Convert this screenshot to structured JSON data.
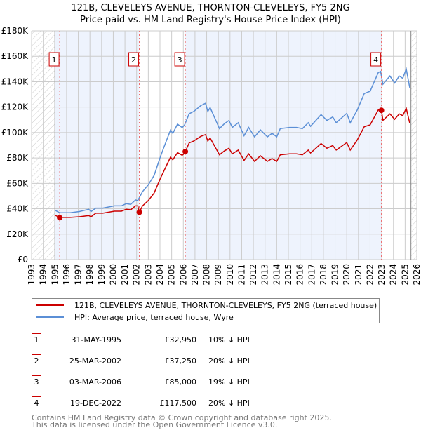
{
  "title": "121B, CLEVELEYS AVENUE, THORNTON-CLEVELEYS, FY5 2NG",
  "subtitle": "Price paid vs. HM Land Registry's House Price Index (HPI)",
  "legend": {
    "price_paid": "121B, CLEVELEYS AVENUE, THORNTON-CLEVELEYS, FY5 2NG (terraced house)",
    "hpi": "HPI: Average price, terraced house, Wyre"
  },
  "sales": [
    {
      "num": "1",
      "date": "31-MAY-1995",
      "price": "£32,950",
      "hpi": "10% ↓ HPI",
      "year": 1995.41,
      "value": 32.95
    },
    {
      "num": "2",
      "date": "25-MAR-2002",
      "price": "£37,250",
      "hpi": "20% ↓ HPI",
      "year": 2002.23,
      "value": 37.25
    },
    {
      "num": "3",
      "date": "03-MAR-2006",
      "price": "£85,000",
      "hpi": "19% ↓ HPI",
      "year": 2006.17,
      "value": 85.0
    },
    {
      "num": "4",
      "date": "19-DEC-2022",
      "price": "£117,500",
      "hpi": "20% ↓ HPI",
      "year": 2022.97,
      "value": 117.5
    }
  ],
  "footer": {
    "line1": "Contains HM Land Registry data © Crown copyright and database right 2025.",
    "line2": "This data is licensed under the Open Government Licence v3.0."
  },
  "colors": {
    "price_paid": "#cc0000",
    "hpi": "#5b8fd6",
    "shade": "#eef3fd",
    "grid": "#cccccc"
  },
  "chart_data": {
    "type": "line",
    "xlim": [
      1993,
      2026
    ],
    "ylim": [
      0,
      180
    ],
    "data_start": 1995,
    "data_end": 2025.5,
    "yticks": [
      0,
      20,
      40,
      60,
      80,
      100,
      120,
      140,
      160,
      180
    ],
    "ytick_labels": [
      "£0",
      "£20K",
      "£40K",
      "£60K",
      "£80K",
      "£100K",
      "£120K",
      "£140K",
      "£160K",
      "£180K"
    ],
    "xticks": [
      "1993",
      "1994",
      "1995",
      "1996",
      "1997",
      "1998",
      "1999",
      "2000",
      "2001",
      "2002",
      "2003",
      "2004",
      "2005",
      "2006",
      "2007",
      "2008",
      "2009",
      "2010",
      "2011",
      "2012",
      "2013",
      "2014",
      "2015",
      "2016",
      "2017",
      "2018",
      "2019",
      "2020",
      "2021",
      "2022",
      "2023",
      "2024",
      "2025",
      "2026"
    ],
    "grid": true,
    "units": "£ thousands",
    "series": [
      {
        "name": "price_paid",
        "x": [
          1995.04,
          1995.4,
          1996.3,
          1997.1,
          1997.9,
          1998.1,
          1998.5,
          1999.1,
          2000.1,
          2000.7,
          2001.1,
          2001.5,
          2001.9,
          2002.1,
          2002.23,
          2002.5,
          2003.0,
          2003.5,
          2004.0,
          2004.3,
          2004.9,
          2005.1,
          2005.5,
          2005.9,
          2006.1,
          2006.17,
          2006.5,
          2006.9,
          2007.5,
          2007.9,
          2008.1,
          2008.3,
          2009.1,
          2009.5,
          2009.9,
          2010.2,
          2010.7,
          2011.2,
          2011.6,
          2012.1,
          2012.6,
          2013.2,
          2013.6,
          2014.0,
          2014.3,
          2015.1,
          2015.7,
          2016.2,
          2016.7,
          2016.9,
          2017.8,
          2018.3,
          2018.8,
          2019.1,
          2020.0,
          2020.3,
          2020.9,
          2021.5,
          2022.0,
          2022.7,
          2022.97,
          2023.1,
          2023.7,
          2024.1,
          2024.5,
          2024.8,
          2025.1,
          2025.4
        ],
        "y": [
          34.8,
          33.2,
          33.2,
          33.7,
          34.6,
          33.7,
          36.5,
          36.5,
          38.1,
          38.1,
          39.6,
          39.2,
          42.3,
          42.3,
          37.25,
          42.2,
          46.5,
          52.4,
          63.2,
          69.1,
          80.6,
          78.5,
          84.2,
          82.1,
          83.6,
          85,
          91.8,
          93.3,
          97,
          98.4,
          93.3,
          95.7,
          82.5,
          85.4,
          87.6,
          83.2,
          86.2,
          78,
          83.2,
          77.3,
          81.7,
          77.3,
          79.5,
          77.3,
          82.5,
          83.2,
          83.2,
          82.5,
          86.2,
          83.9,
          91.3,
          87.6,
          89.8,
          86.2,
          92.1,
          86.2,
          94.2,
          104.6,
          106,
          117.8,
          117.5,
          109.6,
          114.7,
          110.4,
          114.7,
          113.3,
          119.1,
          107.3
        ]
      },
      {
        "name": "hpi",
        "x": [
          1995.04,
          1995.4,
          1996.3,
          1997.1,
          1997.9,
          1998.1,
          1998.5,
          1999.1,
          2000.1,
          2000.7,
          2001.1,
          2001.5,
          2001.9,
          2002.1,
          2002.5,
          2003.0,
          2003.5,
          2004.0,
          2004.3,
          2004.9,
          2005.1,
          2005.5,
          2005.9,
          2006.1,
          2006.5,
          2006.9,
          2007.5,
          2007.9,
          2008.1,
          2008.3,
          2009.1,
          2009.5,
          2009.9,
          2010.2,
          2010.7,
          2011.2,
          2011.6,
          2012.1,
          2012.6,
          2013.2,
          2013.6,
          2014.0,
          2014.3,
          2015.1,
          2015.7,
          2016.2,
          2016.7,
          2016.9,
          2017.8,
          2018.3,
          2018.8,
          2019.1,
          2020.0,
          2020.3,
          2020.9,
          2021.5,
          2022.0,
          2022.7,
          2022.9,
          2023.1,
          2023.7,
          2024.1,
          2024.5,
          2024.8,
          2025.1,
          2025.4
        ],
        "y": [
          38.7,
          36.9,
          36.9,
          37.8,
          39.6,
          37.8,
          40.5,
          40.5,
          42.3,
          42.3,
          44,
          43.5,
          47,
          46.5,
          53.4,
          58.9,
          66.3,
          80,
          87.5,
          102,
          99.4,
          106.6,
          103.9,
          105.8,
          114.8,
          116.6,
          121.2,
          123,
          116.6,
          119.6,
          103.1,
          106.8,
          109.5,
          104,
          107.7,
          97.5,
          104,
          96.6,
          102.1,
          96.6,
          99.4,
          96.6,
          103.1,
          104,
          104,
          103.1,
          107.7,
          104.9,
          114.1,
          109.5,
          112.3,
          107.7,
          115.1,
          107.7,
          117.8,
          130.7,
          132.5,
          147.2,
          148.1,
          138,
          144.5,
          139,
          144.5,
          142.7,
          150,
          135.2
        ]
      }
    ]
  }
}
